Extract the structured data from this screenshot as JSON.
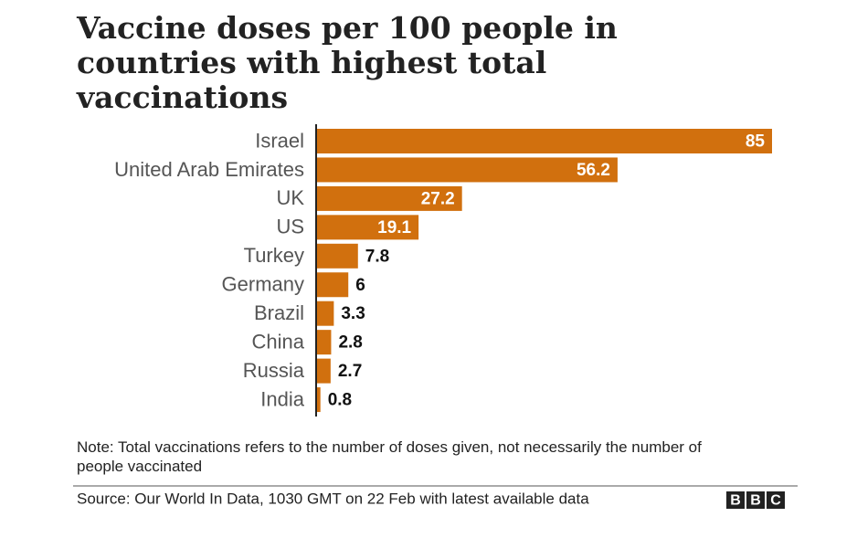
{
  "chart_data": {
    "type": "bar",
    "orientation": "horizontal",
    "title": "Vaccine doses per 100 people in countries with highest total vaccinations",
    "categories": [
      "Israel",
      "United Arab Emirates",
      "UK",
      "US",
      "Turkey",
      "Germany",
      "Brazil",
      "China",
      "Russia",
      "India"
    ],
    "values": [
      85,
      56.2,
      27.2,
      19.1,
      7.8,
      6,
      3.3,
      2.8,
      2.7,
      0.8
    ],
    "color": "#d1700e",
    "note": "Note: Total vaccinations refers to the number of doses given, not necessarily the number of people vaccinated",
    "source": "Source: Our World In Data, 1030 GMT on 22 Feb with latest available data",
    "logo": [
      "B",
      "B",
      "C"
    ]
  }
}
